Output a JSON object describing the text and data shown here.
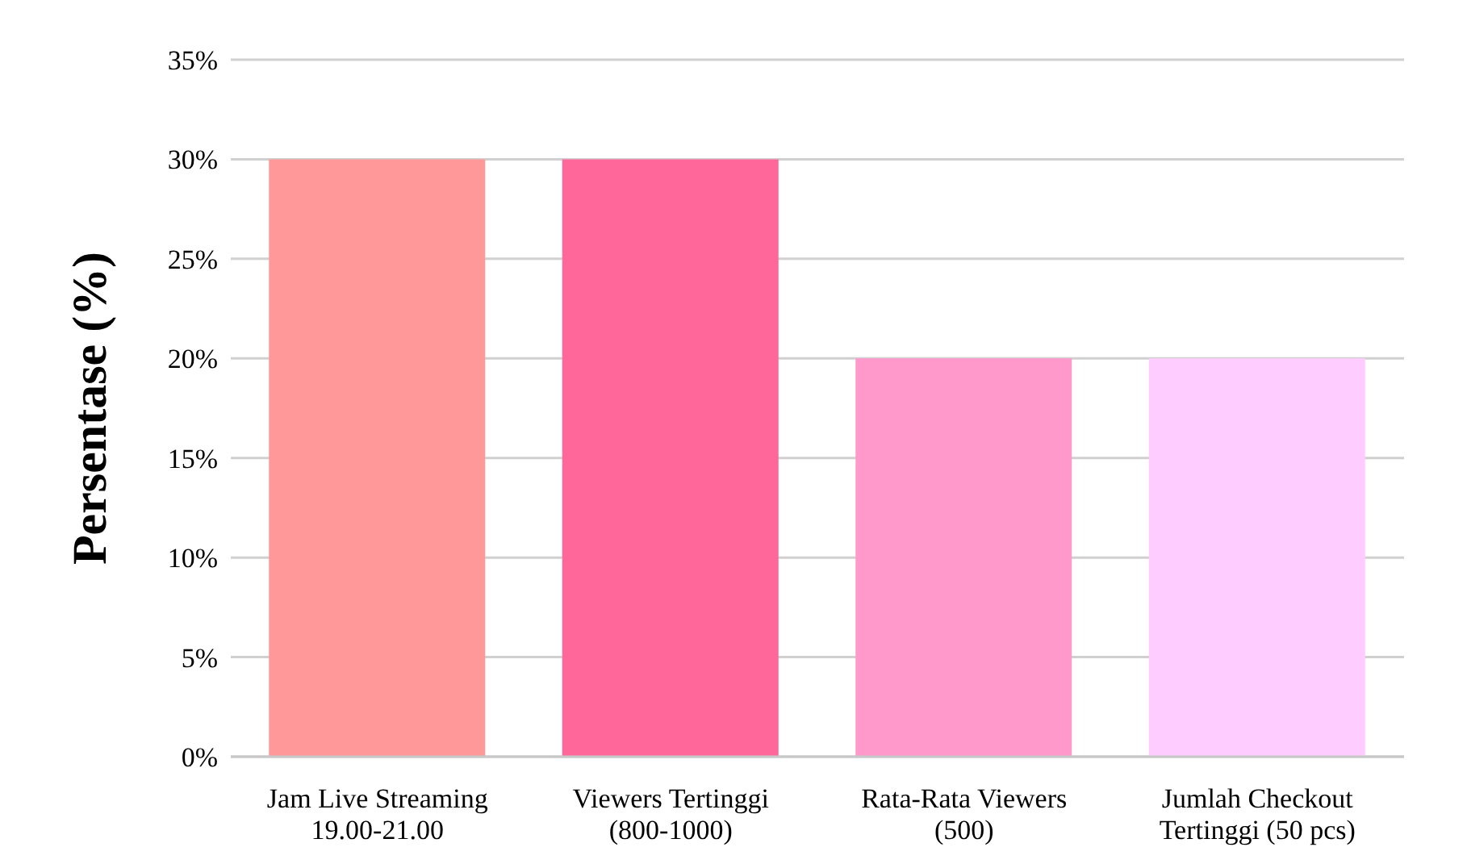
{
  "chart_data": {
    "type": "bar",
    "ylabel": "Persentase (%)",
    "categories": [
      "Jam Live Streaming\n19.00-21.00",
      "Viewers Tertinggi\n(800-1000)",
      "Rata-Rata Viewers\n(500)",
      "Jumlah Checkout\nTertinggi (50 pcs)"
    ],
    "values": [
      30,
      30,
      20,
      20
    ],
    "colors": [
      "#ff9999",
      "#ff6699",
      "#ff99cc",
      "#ffccff"
    ],
    "ylim": [
      0,
      35
    ],
    "yticks": [
      {
        "value": 0,
        "label": "0%"
      },
      {
        "value": 5,
        "label": "5%"
      },
      {
        "value": 10,
        "label": "10%"
      },
      {
        "value": 15,
        "label": "15%"
      },
      {
        "value": 20,
        "label": "20%"
      },
      {
        "value": 25,
        "label": "25%"
      },
      {
        "value": 30,
        "label": "30%"
      },
      {
        "value": 35,
        "label": "35%"
      }
    ],
    "grid": "y",
    "legend": false
  }
}
